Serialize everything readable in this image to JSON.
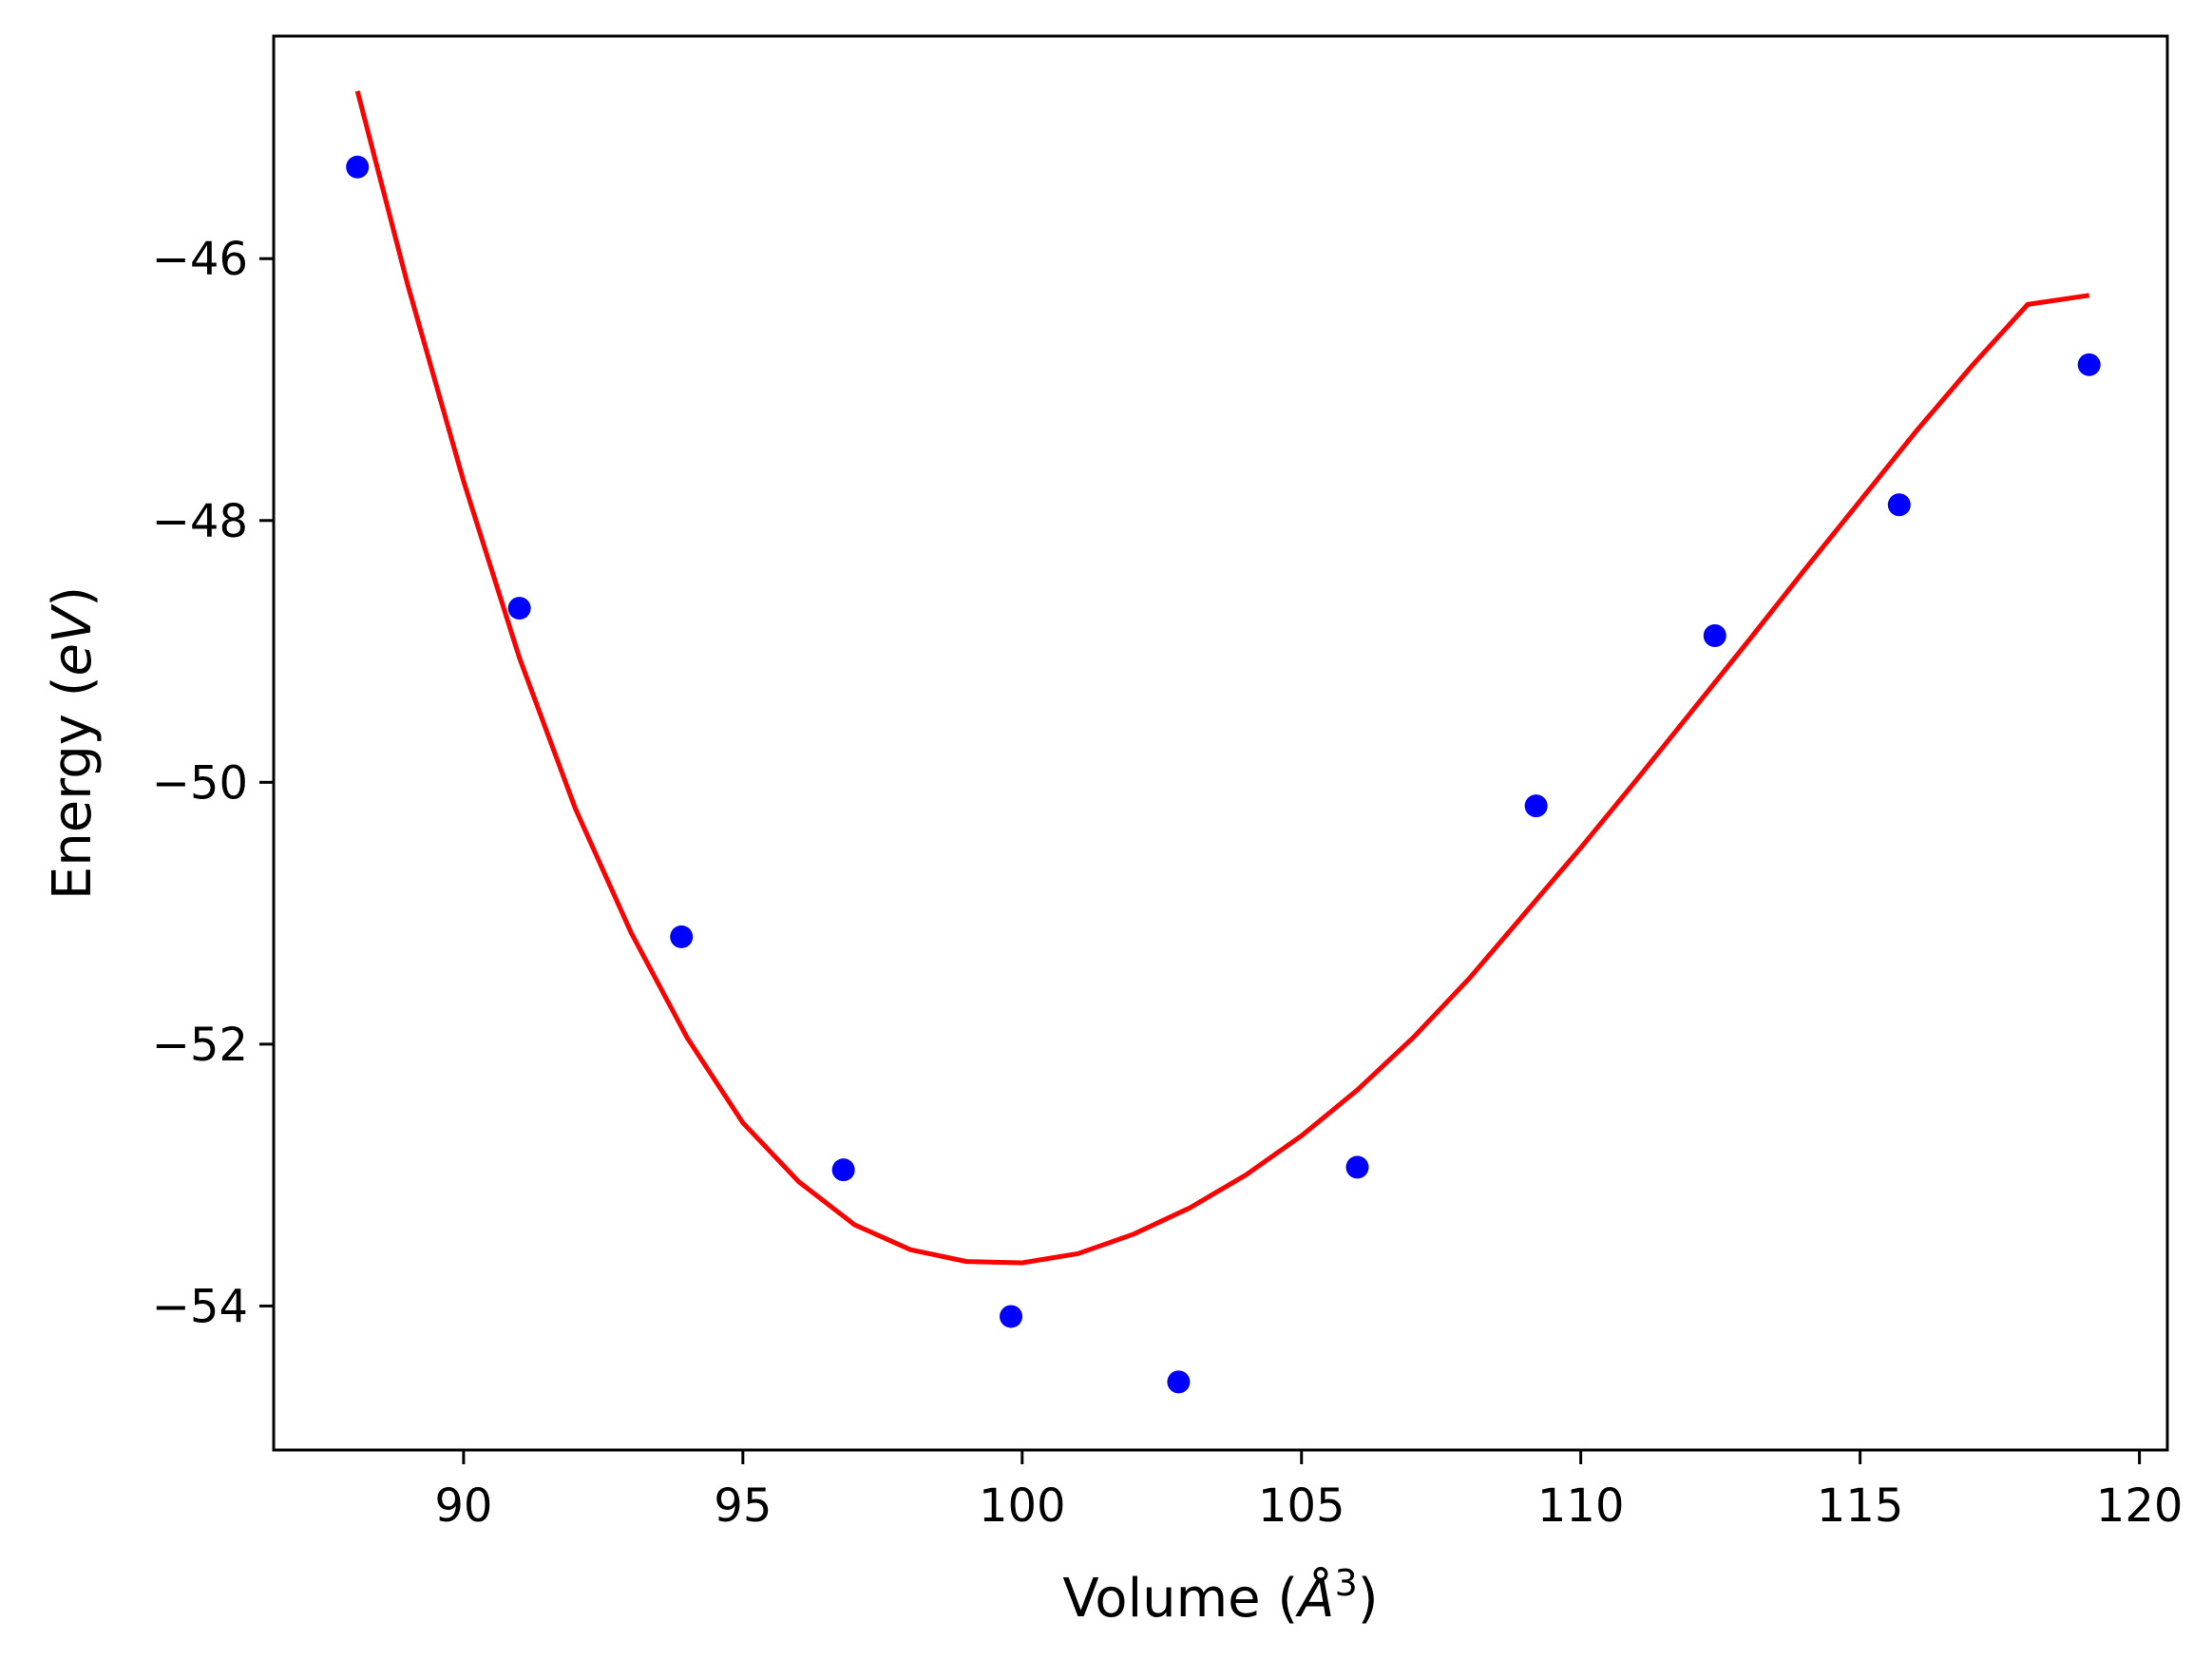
{
  "chart_data": {
    "type": "scatter",
    "xlabel": "Volume",
    "xlabel_unit_symbol": "Å",
    "xlabel_unit_power": "3",
    "ylabel": "Energy",
    "ylabel_unit": "eV",
    "xlim": [
      86.6,
      120.5
    ],
    "ylim": [
      -55.1,
      -44.3
    ],
    "x_ticks": [
      90,
      95,
      100,
      105,
      110,
      115,
      120
    ],
    "x_tick_labels": [
      "90",
      "95",
      "100",
      "105",
      "110",
      "115",
      "120"
    ],
    "y_ticks": [
      -46,
      -48,
      -50,
      -52,
      -54
    ],
    "y_tick_labels": [
      "−46",
      "−48",
      "−50",
      "−52",
      "−54"
    ],
    "grid": false,
    "series": [
      {
        "kind": "points",
        "color": "#0000ff",
        "x": [
          88.1,
          91.0,
          93.9,
          96.8,
          99.8,
          102.8,
          106.0,
          109.2,
          112.4,
          115.7,
          119.1
        ],
        "y": [
          -45.3,
          -48.67,
          -51.18,
          -52.96,
          -54.08,
          -54.58,
          -52.94,
          -50.18,
          -48.88,
          -47.88,
          -46.81
        ]
      },
      {
        "kind": "fit-curve",
        "color": "#ff0000",
        "x": [
          88.1,
          89.0,
          90.0,
          91.0,
          92.0,
          93.0,
          94.0,
          95.0,
          96.0,
          97.0,
          98.0,
          99.0,
          100.0,
          101.0,
          102.0,
          103.0,
          104.0,
          105.0,
          106.0,
          107.0,
          108.0,
          109.0,
          110.0,
          111.0,
          112.0,
          113.0,
          114.0,
          115.0,
          116.0,
          117.0,
          118.0,
          119.1
        ],
        "y": [
          -44.72,
          -46.2,
          -47.7,
          -49.05,
          -50.2,
          -51.15,
          -51.95,
          -52.6,
          -53.05,
          -53.38,
          -53.57,
          -53.66,
          -53.67,
          -53.6,
          -53.45,
          -53.25,
          -53.0,
          -52.7,
          -52.35,
          -51.95,
          -51.5,
          -51.0,
          -50.5,
          -49.98,
          -49.45,
          -48.92,
          -48.38,
          -47.85,
          -47.32,
          -46.82,
          -46.35,
          -46.28
        ]
      }
    ]
  }
}
